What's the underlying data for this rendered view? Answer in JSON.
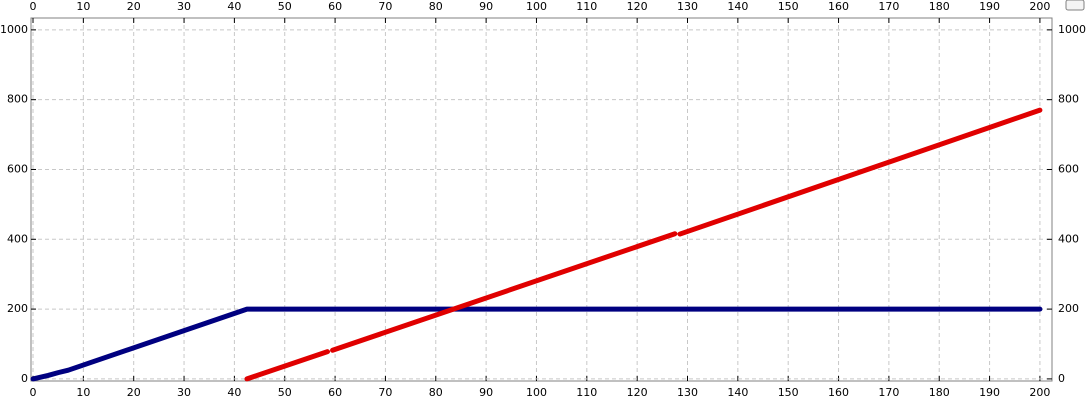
{
  "chart_data": {
    "type": "line",
    "xlim": [
      -0.4,
      202.4
    ],
    "xticks": [
      0,
      10,
      20,
      30,
      40,
      50,
      60,
      70,
      80,
      90,
      100,
      110,
      120,
      130,
      140,
      150,
      160,
      170,
      180,
      190,
      200
    ],
    "ylim": [
      -6,
      1034
    ],
    "yticks": [
      0,
      200,
      400,
      600,
      800,
      1000
    ],
    "grid": true,
    "series": [
      {
        "color": "#000080",
        "x": [
          0,
          3,
          5,
          7,
          42.5,
          200
        ],
        "values": [
          0,
          10,
          18,
          25,
          200,
          200
        ]
      },
      {
        "color": "#e00000",
        "x": [
          42.5,
          58.5,
          59,
          59.5,
          127.5,
          128,
          128.5,
          200
        ],
        "values": [
          0,
          78,
          null,
          82,
          416,
          null,
          415,
          770
        ]
      }
    ]
  }
}
